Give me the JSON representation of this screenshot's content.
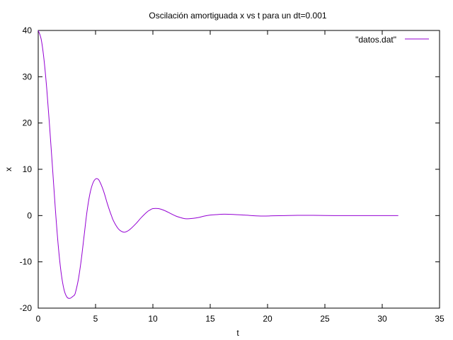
{
  "chart_data": {
    "type": "line",
    "title": "Oscilación amortiguada  x vs t para un dt=0.001",
    "xlabel": "t",
    "ylabel": "x",
    "xlim": [
      0,
      35
    ],
    "ylim": [
      -20,
      40
    ],
    "xticks": [
      0,
      5,
      10,
      15,
      20,
      25,
      30,
      35
    ],
    "yticks": [
      -20,
      -10,
      0,
      10,
      20,
      30,
      40
    ],
    "grid": false,
    "legend_position": "top-right",
    "series": [
      {
        "name": "\"datos.dat\"",
        "color": "#9400d3",
        "x": [
          0,
          0.25,
          0.5,
          0.75,
          1.0,
          1.25,
          1.5,
          1.75,
          2.0,
          2.25,
          2.5,
          2.75,
          3.0,
          3.15,
          3.25,
          3.5,
          3.75,
          4.0,
          4.25,
          4.5,
          4.75,
          5.0,
          5.25,
          5.5,
          5.75,
          6.0,
          6.25,
          6.4,
          6.5,
          6.75,
          7.0,
          7.25,
          7.5,
          7.75,
          8.0,
          8.5,
          9.0,
          9.5,
          9.75,
          10.0,
          10.5,
          11.0,
          11.5,
          12.0,
          12.5,
          12.9,
          13.5,
          14.0,
          14.5,
          15.0,
          15.5,
          16.2,
          17.0,
          18.0,
          19.4,
          20.5,
          21.5,
          22.6,
          24.0,
          25.8,
          27.5,
          29.0,
          30.5,
          31.4
        ],
        "y": [
          40,
          38.2,
          33.8,
          27.2,
          19.0,
          10.2,
          1.2,
          -6.6,
          -12.4,
          -16.0,
          -17.6,
          -17.9,
          -17.5,
          -17.2,
          -16.6,
          -13.8,
          -9.6,
          -4.4,
          0.8,
          4.6,
          6.9,
          7.9,
          7.8,
          6.6,
          4.9,
          2.8,
          0.9,
          -0.1,
          -0.8,
          -2.0,
          -2.9,
          -3.4,
          -3.6,
          -3.4,
          -3.0,
          -1.8,
          -0.4,
          0.8,
          1.2,
          1.5,
          1.5,
          1.1,
          0.5,
          -0.1,
          -0.5,
          -0.7,
          -0.6,
          -0.4,
          -0.1,
          0.1,
          0.2,
          0.3,
          0.25,
          0.1,
          -0.1,
          -0.05,
          0.0,
          0.05,
          0.05,
          0.0,
          0.0,
          0.0,
          0.0,
          0.0
        ]
      }
    ]
  }
}
